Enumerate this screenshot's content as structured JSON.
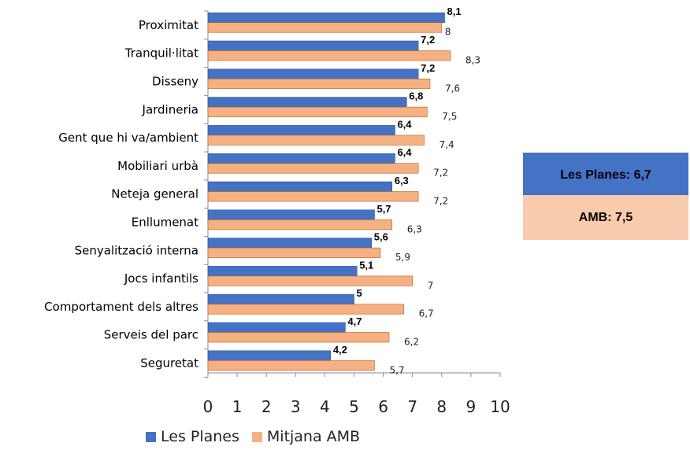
{
  "chart_data": {
    "type": "bar",
    "orientation": "horizontal",
    "categories": [
      "Proximitat",
      "Tranquil·litat",
      "Disseny",
      "Jardineria",
      "Gent que hi va/ambient",
      "Mobiliari urbà",
      "Neteja general",
      "Enllumenat",
      "Senyalització interna",
      "Jocs infantils",
      "Comportament dels altres",
      "Serveis del parc",
      "Seguretat"
    ],
    "series": [
      {
        "name": "Les Planes",
        "color": "#4472c4",
        "values": [
          8.1,
          7.2,
          7.2,
          6.8,
          6.4,
          6.4,
          6.3,
          5.7,
          5.6,
          5.1,
          5,
          4.7,
          4.2
        ],
        "labels": [
          "8,1",
          "7,2",
          "7,2",
          "6,8",
          "6,4",
          "6,4",
          "6,3",
          "5,7",
          "5,6",
          "5,1",
          "5",
          "4,7",
          "4,2"
        ]
      },
      {
        "name": "Mitjana AMB",
        "color": "#f4b183",
        "values": [
          8,
          8.3,
          7.6,
          7.5,
          7.4,
          7.2,
          7.2,
          6.3,
          5.9,
          7,
          6.7,
          6.2,
          5.7
        ],
        "labels": [
          "8",
          "8,3",
          "7,6",
          "7,5",
          "7,4",
          "7,2",
          "7,2",
          "6,3",
          "5,9",
          "7",
          "6,7",
          "6,2",
          "5,7"
        ]
      }
    ],
    "xlim": [
      0,
      10
    ],
    "xticks": [
      "0",
      "1",
      "2",
      "3",
      "4",
      "5",
      "6",
      "7",
      "8",
      "9",
      "10"
    ],
    "legend_position": "bottom"
  },
  "summary": {
    "les_planes": "Les Planes: 6,7",
    "amb": "AMB: 7,5"
  }
}
